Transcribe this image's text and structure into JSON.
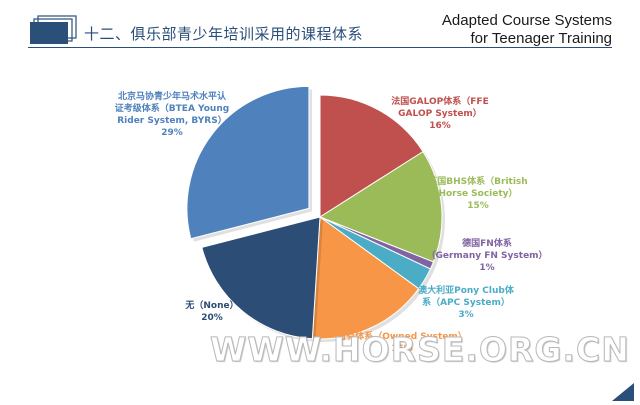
{
  "header": {
    "title_cn": "十二、俱乐部青少年培训采用的课程体系",
    "title_en_line1": "Adapted Course Systems",
    "title_en_line2": "for Teenager Training",
    "accent_color": "#2a4f79"
  },
  "watermark": "WWW.HORSE.ORG.CN",
  "chart_data": {
    "type": "pie",
    "title": "",
    "slices": [
      {
        "label_lines": [
          "法国GALOP体系（FFE",
          "GALOP System）",
          "16%"
        ],
        "value": 16,
        "color": "#c0504d",
        "exploded": false
      },
      {
        "label_lines": [
          "英国BHS体系（British",
          "Horse Society）",
          "15%"
        ],
        "value": 15,
        "color": "#9bbb59",
        "exploded": false
      },
      {
        "label_lines": [
          "德国FN体系",
          "（Germany FN System）",
          "1%"
        ],
        "value": 1,
        "color": "#8064a2",
        "exploded": false
      },
      {
        "label_lines": [
          "澳大利亚Pony Club体",
          "系（APC System）",
          "3%"
        ],
        "value": 3,
        "color": "#4bacc6",
        "exploded": false
      },
      {
        "label_lines": [
          "自有体系（Owned System）",
          "16%"
        ],
        "value": 16,
        "color": "#f79646",
        "exploded": false
      },
      {
        "label_lines": [
          "无（None）",
          "20%"
        ],
        "value": 20,
        "color": "#2c4d75",
        "exploded": false
      },
      {
        "label_lines": [
          "北京马协青少年马术水平认",
          "证考级体系（BTEA Young",
          "Rider System, BYRS）",
          "29%"
        ],
        "value": 29,
        "color": "#4f81bd",
        "exploded": true
      }
    ]
  }
}
